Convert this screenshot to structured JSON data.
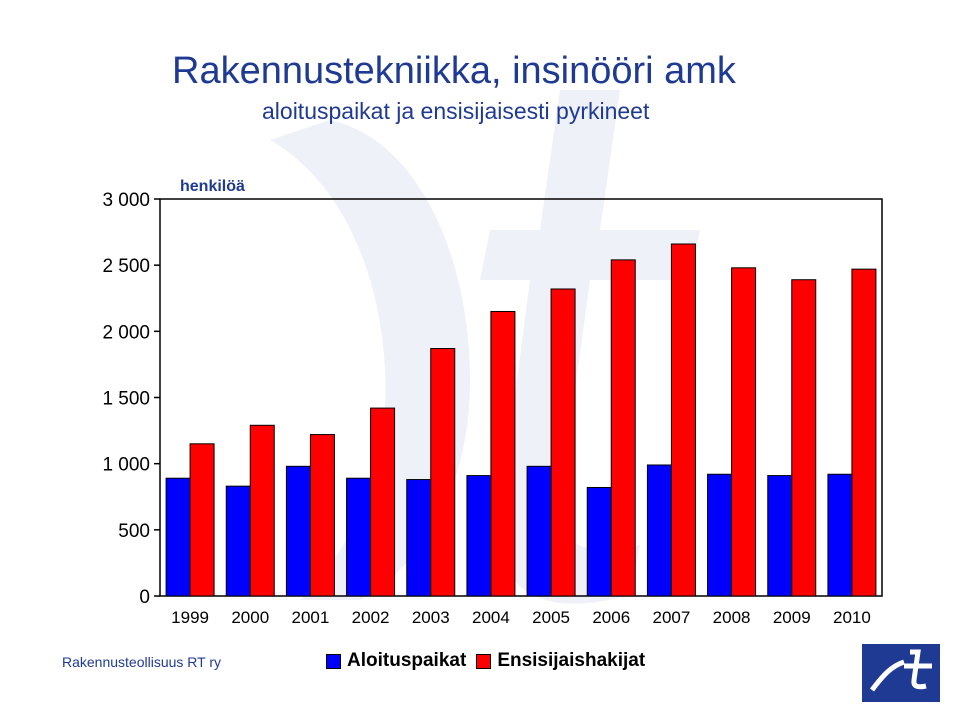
{
  "header": {
    "title": "Rakennustekniikka, insinööri amk",
    "subtitle": "aloituspaikat ja ensisijaisesti pyrkineet"
  },
  "footer": {
    "source": "Rakennusteollisuus RT ry"
  },
  "logo": {
    "icon": "rt-logo-icon"
  },
  "colors": {
    "blue": "#0000ff",
    "red": "#ff0000",
    "title": "#1f3a93",
    "logo_bg": "#1f3a93"
  },
  "chart_data": {
    "type": "bar",
    "ylabel": "henkilöä",
    "ylim": [
      0,
      3000
    ],
    "yticks": [
      0,
      500,
      1000,
      1500,
      2000,
      2500,
      3000
    ],
    "ytick_labels": [
      "0",
      "500",
      "1 000",
      "1 500",
      "2 000",
      "2 500",
      "3 000"
    ],
    "categories": [
      "1999",
      "2000",
      "2001",
      "2002",
      "2003",
      "2004",
      "2005",
      "2006",
      "2007",
      "2008",
      "2009",
      "2010"
    ],
    "series": [
      {
        "name": "Aloituspaikat",
        "color": "#0000ff",
        "values": [
          890,
          830,
          980,
          890,
          880,
          910,
          980,
          820,
          990,
          920,
          910,
          920
        ]
      },
      {
        "name": "Ensisijaishakijat",
        "color": "#ff0000",
        "values": [
          1150,
          1290,
          1220,
          1420,
          1870,
          2150,
          2320,
          2540,
          2660,
          2480,
          2390,
          2470
        ]
      }
    ],
    "grid": false,
    "legend": "bottom"
  }
}
